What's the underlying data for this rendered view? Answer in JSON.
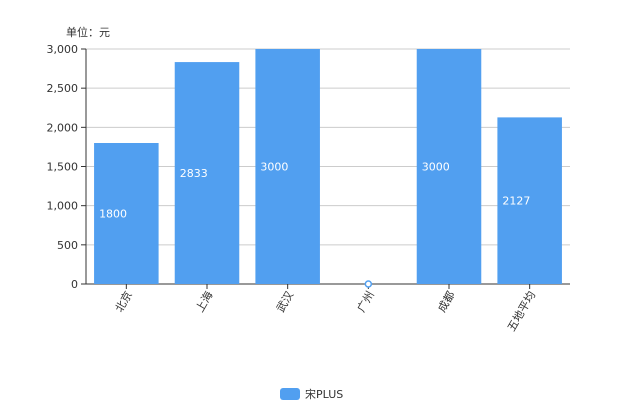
{
  "chart_data": {
    "type": "bar",
    "unit_label": "单位：元",
    "categories": [
      "北京",
      "上海",
      "武汉",
      "广州",
      "成都",
      "五地平均"
    ],
    "series": [
      {
        "name": "宋PLUS",
        "values": [
          1800,
          2833,
          3000,
          0,
          3000,
          2127
        ],
        "color": "#519ff0"
      }
    ],
    "data_labels": [
      "1800",
      "2833",
      "3000",
      "",
      "3000",
      "2127"
    ],
    "ylim": [
      0,
      3000
    ],
    "y_ticks": [
      0,
      500,
      1000,
      1500,
      2000,
      2500,
      3000
    ],
    "y_tick_labels": [
      "0",
      "500",
      "1,000",
      "1,500",
      "2,000",
      "2,500",
      "3,000"
    ],
    "grid": true,
    "legend_position": "bottom-center",
    "xlabel": "",
    "ylabel": ""
  }
}
